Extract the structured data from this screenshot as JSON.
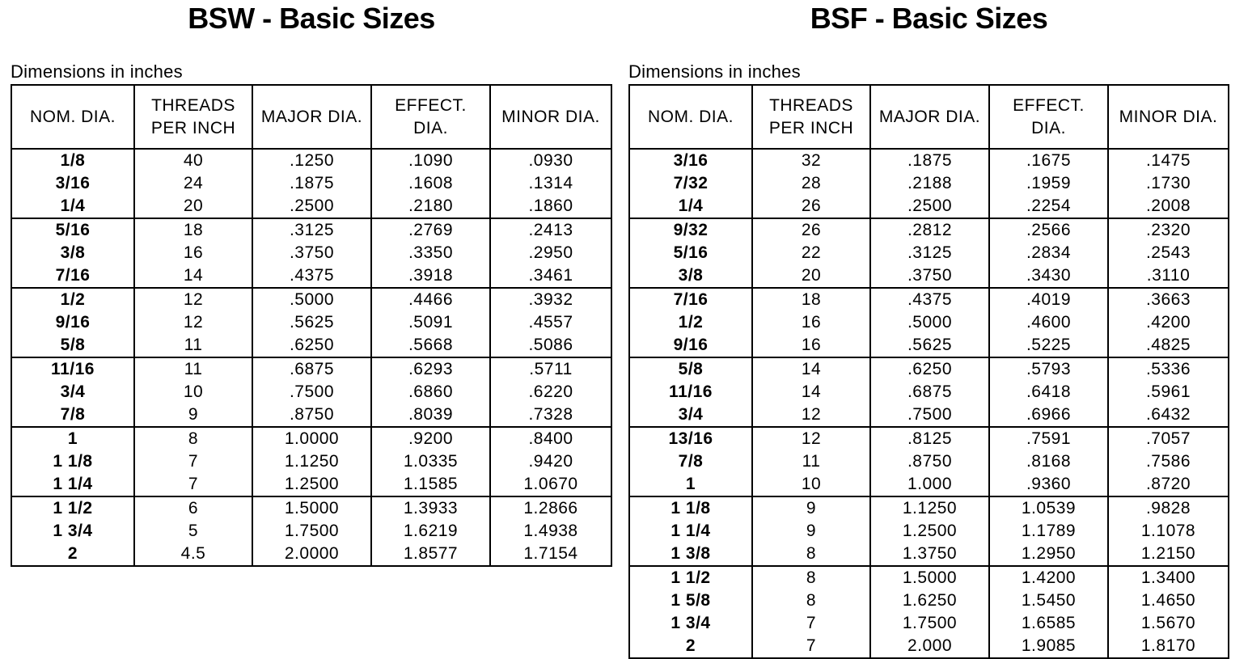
{
  "colors": {
    "background": "#ffffff",
    "text": "#000000",
    "border": "#000000"
  },
  "tables": [
    {
      "id": "bsw",
      "title": "BSW - Basic Sizes",
      "subtitle": "Dimensions in inches",
      "columns": [
        [
          "NOM. DIA."
        ],
        [
          "THREADS",
          "PER INCH"
        ],
        [
          "MAJOR DIA."
        ],
        [
          "EFFECT.",
          "DIA."
        ],
        [
          "MINOR DIA."
        ]
      ],
      "groups": [
        [
          [
            "1/8",
            "40",
            ".1250",
            ".1090",
            ".0930"
          ],
          [
            "3/16",
            "24",
            ".1875",
            ".1608",
            ".1314"
          ],
          [
            "1/4",
            "20",
            ".2500",
            ".2180",
            ".1860"
          ]
        ],
        [
          [
            "5/16",
            "18",
            ".3125",
            ".2769",
            ".2413"
          ],
          [
            "3/8",
            "16",
            ".3750",
            ".3350",
            ".2950"
          ],
          [
            "7/16",
            "14",
            ".4375",
            ".3918",
            ".3461"
          ]
        ],
        [
          [
            "1/2",
            "12",
            ".5000",
            ".4466",
            ".3932"
          ],
          [
            "9/16",
            "12",
            ".5625",
            ".5091",
            ".4557"
          ],
          [
            "5/8",
            "11",
            ".6250",
            ".5668",
            ".5086"
          ]
        ],
        [
          [
            "11/16",
            "11",
            ".6875",
            ".6293",
            ".5711"
          ],
          [
            "3/4",
            "10",
            ".7500",
            ".6860",
            ".6220"
          ],
          [
            "7/8",
            "9",
            ".8750",
            ".8039",
            ".7328"
          ]
        ],
        [
          [
            "1",
            "8",
            "1.0000",
            ".9200",
            ".8400"
          ],
          [
            "1 1/8",
            "7",
            "1.1250",
            "1.0335",
            ".9420"
          ],
          [
            "1 1/4",
            "7",
            "1.2500",
            "1.1585",
            "1.0670"
          ]
        ],
        [
          [
            "1 1/2",
            "6",
            "1.5000",
            "1.3933",
            "1.2866"
          ],
          [
            "1 3/4",
            "5",
            "1.7500",
            "1.6219",
            "1.4938"
          ],
          [
            "2",
            "4.5",
            "2.0000",
            "1.8577",
            "1.7154"
          ]
        ]
      ]
    },
    {
      "id": "bsf",
      "title": "BSF - Basic Sizes",
      "subtitle": "Dimensions in inches",
      "columns": [
        [
          "NOM. DIA."
        ],
        [
          "THREADS",
          "PER INCH"
        ],
        [
          "MAJOR DIA."
        ],
        [
          "EFFECT.",
          "DIA."
        ],
        [
          "MINOR DIA."
        ]
      ],
      "groups": [
        [
          [
            "3/16",
            "32",
            ".1875",
            ".1675",
            ".1475"
          ],
          [
            "7/32",
            "28",
            ".2188",
            ".1959",
            ".1730"
          ],
          [
            "1/4",
            "26",
            ".2500",
            ".2254",
            ".2008"
          ]
        ],
        [
          [
            "9/32",
            "26",
            ".2812",
            ".2566",
            ".2320"
          ],
          [
            "5/16",
            "22",
            ".3125",
            ".2834",
            ".2543"
          ],
          [
            "3/8",
            "20",
            ".3750",
            ".3430",
            ".3110"
          ]
        ],
        [
          [
            "7/16",
            "18",
            ".4375",
            ".4019",
            ".3663"
          ],
          [
            "1/2",
            "16",
            ".5000",
            ".4600",
            ".4200"
          ],
          [
            "9/16",
            "16",
            ".5625",
            ".5225",
            ".4825"
          ]
        ],
        [
          [
            "5/8",
            "14",
            ".6250",
            ".5793",
            ".5336"
          ],
          [
            "11/16",
            "14",
            ".6875",
            ".6418",
            ".5961"
          ],
          [
            "3/4",
            "12",
            ".7500",
            ".6966",
            ".6432"
          ]
        ],
        [
          [
            "13/16",
            "12",
            ".8125",
            ".7591",
            ".7057"
          ],
          [
            "7/8",
            "11",
            ".8750",
            ".8168",
            ".7586"
          ],
          [
            "1",
            "10",
            "1.000",
            ".9360",
            ".8720"
          ]
        ],
        [
          [
            "1 1/8",
            "9",
            "1.1250",
            "1.0539",
            ".9828"
          ],
          [
            "1 1/4",
            "9",
            "1.2500",
            "1.1789",
            "1.1078"
          ],
          [
            "1 3/8",
            "8",
            "1.3750",
            "1.2950",
            "1.2150"
          ]
        ],
        [
          [
            "1 1/2",
            "8",
            "1.5000",
            "1.4200",
            "1.3400"
          ],
          [
            "1 5/8",
            "8",
            "1.6250",
            "1.5450",
            "1.4650"
          ],
          [
            "1 3/4",
            "7",
            "1.7500",
            "1.6585",
            "1.5670"
          ],
          [
            "2",
            "7",
            "2.000",
            "1.9085",
            "1.8170"
          ]
        ]
      ]
    }
  ]
}
